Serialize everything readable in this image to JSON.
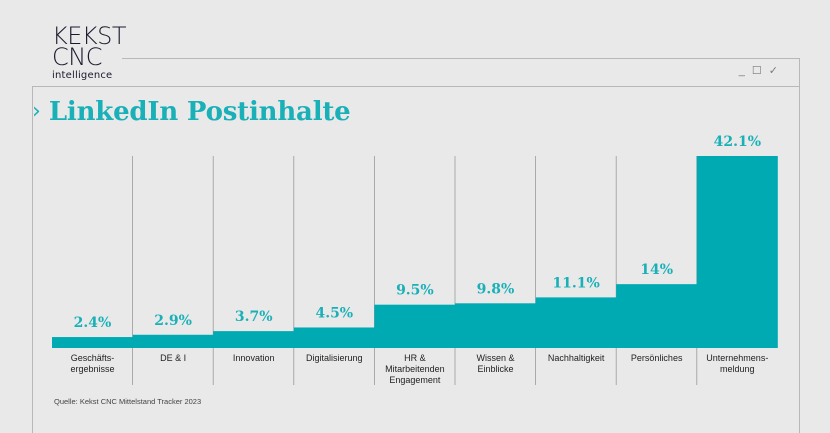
{
  "logo": {
    "line1": "KEKST",
    "line2": "CNC",
    "line3": "intelligence"
  },
  "window_controls": {
    "minimize": "_",
    "maximize": "☐",
    "close": "✓"
  },
  "title": "LinkedIn Postinhalte",
  "source": "Quelle: Kekst CNC Mittelstand Tracker 2023",
  "colors": {
    "bar": "#00aab3",
    "label": "#1ab0b8",
    "divider": "#9a9a9a"
  },
  "chart_data": {
    "type": "bar",
    "categories": [
      "Geschäfts-\nergebnisse",
      "DE & I",
      "Innovation",
      "Digitalisierung",
      "HR &\nMitarbeitenden\nEngagement",
      "Wissen &\nEinblicke",
      "Nachhaltigkeit",
      "Persönliches",
      "Unternehmens-\nmeldung"
    ],
    "values": [
      2.4,
      2.9,
      3.7,
      4.5,
      9.5,
      9.8,
      11.1,
      14,
      42.1
    ],
    "value_labels": [
      "2.4%",
      "2.9%",
      "3.7%",
      "4.5%",
      "9.5%",
      "9.8%",
      "11.1%",
      "14%",
      "42.1%"
    ],
    "title": "LinkedIn Postinhalte",
    "xlabel": "",
    "ylabel": "",
    "ylim": [
      0,
      42.1
    ],
    "grid": false,
    "legend": "none"
  }
}
